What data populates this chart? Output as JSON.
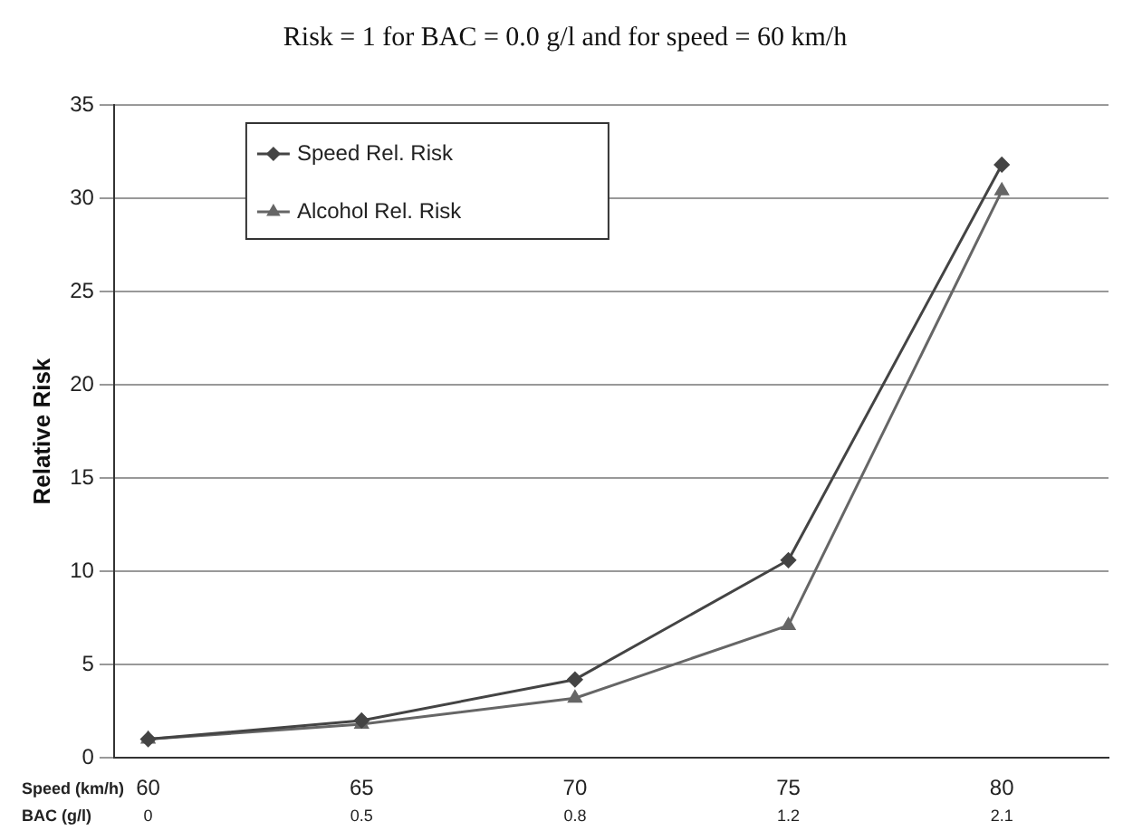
{
  "chart_data": {
    "type": "line",
    "title": "Risk = 1 for BAC = 0.0 g/l and for speed = 60 km/h",
    "xlabel": "Speed (km/h)",
    "ylabel": "Relative Risk",
    "categories": [
      "60",
      "65",
      "70",
      "75",
      "80"
    ],
    "series": [
      {
        "name": "Speed Rel. Risk",
        "color": "#444444",
        "marker": "diamond",
        "values": [
          1.0,
          2.0,
          4.2,
          10.6,
          31.8
        ]
      },
      {
        "name": "Alcohol Rel. Risk",
        "color": "#666666",
        "marker": "triangle",
        "values": [
          1.0,
          1.8,
          3.2,
          7.1,
          30.4
        ]
      }
    ],
    "ylim": [
      0,
      35
    ],
    "yticks": [
      0,
      5,
      10,
      15,
      20,
      25,
      30,
      35
    ],
    "grid": "y",
    "legend": "top left",
    "annotations": [
      "BAC (g/l)",
      "0",
      "0.5",
      "0.8",
      "1.2",
      "2.1"
    ]
  }
}
